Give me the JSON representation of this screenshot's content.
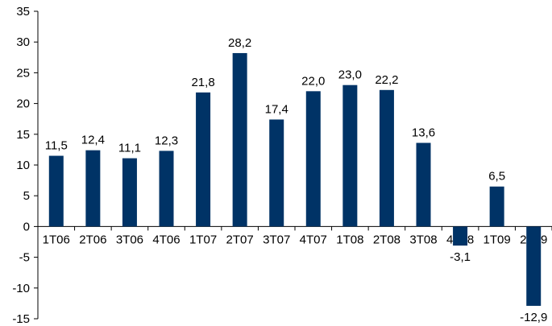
{
  "chart_data": {
    "type": "bar",
    "title": "",
    "xlabel": "",
    "ylabel": "",
    "ylim": [
      -15,
      35
    ],
    "yticks": [
      35,
      30,
      25,
      20,
      15,
      10,
      5,
      0,
      -5,
      -10,
      -15
    ],
    "grid": false,
    "legend": "none",
    "bar_color": "#003366",
    "categories": [
      "1T06",
      "2T06",
      "3T06",
      "4T06",
      "1T07",
      "2T07",
      "3T07",
      "4T07",
      "1T08",
      "2T08",
      "3T08",
      "4T08",
      "1T09",
      "2T09"
    ],
    "values": [
      11.5,
      12.4,
      11.1,
      12.3,
      21.8,
      28.2,
      17.4,
      22.0,
      23.0,
      22.2,
      13.6,
      -3.1,
      6.5,
      -12.9
    ],
    "value_labels": [
      "11,5",
      "12,4",
      "11,1",
      "12,3",
      "21,8",
      "28,2",
      "17,4",
      "22,0",
      "23,0",
      "22,2",
      "13,6",
      "-3,1",
      "6,5",
      "-12,9"
    ]
  }
}
